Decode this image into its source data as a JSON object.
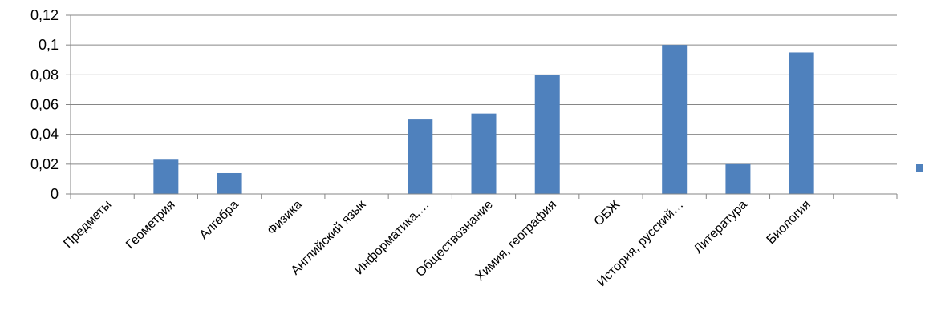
{
  "chart_data": {
    "type": "bar",
    "title": "",
    "xlabel": "",
    "ylabel": "",
    "categories": [
      "Предметы",
      "Геометрия",
      "Алгебра",
      "Физика",
      "Английский язык",
      "Информатика,…",
      "Обществознание",
      "Химия, география",
      "ОБЖ",
      "История, русский…",
      "Литература",
      "Биология"
    ],
    "values": [
      0,
      0.023,
      0.014,
      0,
      0,
      0.05,
      0.054,
      0.08,
      0,
      0.1,
      0.02,
      0.095
    ],
    "y_ticks": [
      "0",
      "0,02",
      "0,04",
      "0,06",
      "0,08",
      "0,1",
      "0,12"
    ],
    "ylim": [
      0,
      0.12
    ],
    "grid": true,
    "legend": "right",
    "colors": {
      "bar": "#4F81BD",
      "legend_marker": "#4F81BD",
      "grid": "#868686"
    }
  }
}
